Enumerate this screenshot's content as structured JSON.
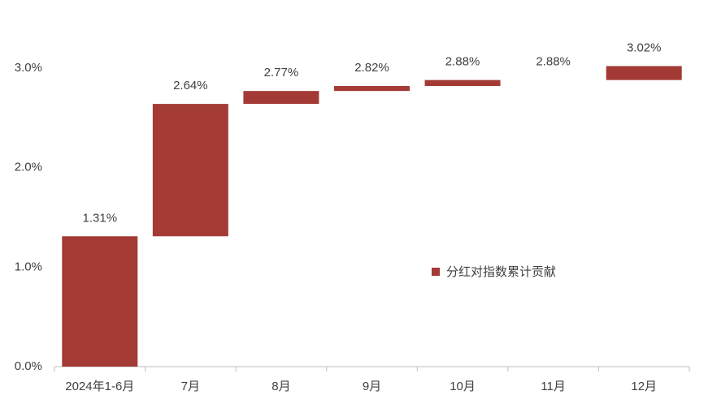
{
  "chart_data": {
    "type": "waterfall",
    "categories": [
      "2024年1-6月",
      "7月",
      "8月",
      "9月",
      "10月",
      "11月",
      "12月"
    ],
    "series": [
      {
        "name": "分红对指数累计贡献",
        "color": "#a33a35",
        "values": [
          1.31,
          2.64,
          2.77,
          2.82,
          2.88,
          2.88,
          3.02
        ],
        "value_labels": [
          "1.31%",
          "2.64%",
          "2.77%",
          "2.82%",
          "2.88%",
          "2.88%",
          "3.02%"
        ]
      }
    ],
    "ylim": [
      0,
      3.5
    ],
    "yticks": [
      {
        "value": 0,
        "label": "0.0%"
      },
      {
        "value": 1,
        "label": "1.0%"
      },
      {
        "value": 2,
        "label": "2.0%"
      },
      {
        "value": 3,
        "label": "3.0%"
      }
    ],
    "grid": false,
    "legend": "right"
  }
}
